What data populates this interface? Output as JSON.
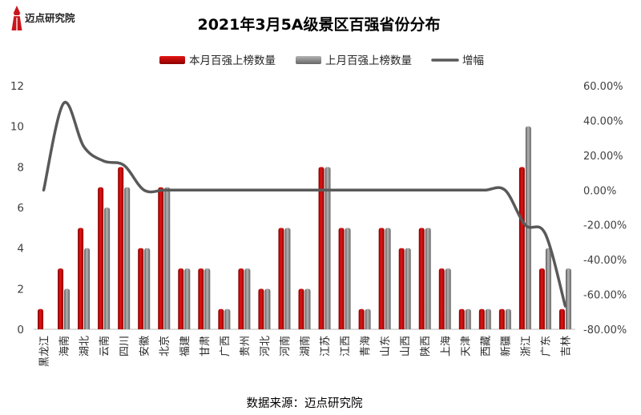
{
  "brand": {
    "name": "迈点研究院",
    "logo_color": "#c8161d",
    "icon": "lighthouse-icon"
  },
  "chart_data": {
    "type": "bar",
    "title": "2021年3月5A级景区百强省份分布",
    "categories": [
      "黑龙江",
      "海南",
      "湖北",
      "云南",
      "四川",
      "安徽",
      "北京",
      "福建",
      "甘肃",
      "广西",
      "贵州",
      "河北",
      "河南",
      "湖南",
      "江苏",
      "江西",
      "青海",
      "山东",
      "山西",
      "陕西",
      "上海",
      "天津",
      "西藏",
      "新疆",
      "浙江",
      "广东",
      "吉林"
    ],
    "series": [
      {
        "name": "本月百强上榜数量",
        "kind": "bar",
        "axis": "left",
        "color": "#c00000",
        "values": [
          1,
          3,
          5,
          7,
          8,
          4,
          7,
          3,
          3,
          1,
          3,
          2,
          5,
          2,
          8,
          5,
          1,
          5,
          4,
          5,
          3,
          1,
          1,
          1,
          8,
          3,
          1
        ]
      },
      {
        "name": "上月百强上榜数量",
        "kind": "bar",
        "axis": "left",
        "color": "#7f7f7f",
        "values": [
          0,
          2,
          4,
          6,
          7,
          4,
          7,
          3,
          3,
          1,
          3,
          2,
          5,
          2,
          8,
          5,
          1,
          5,
          4,
          5,
          3,
          1,
          1,
          1,
          10,
          4,
          3
        ]
      },
      {
        "name": "增幅",
        "kind": "line",
        "axis": "right",
        "color": "#595959",
        "smooth": true,
        "values": [
          0,
          0.5,
          0.25,
          0.1667,
          0.1429,
          0,
          0,
          0,
          0,
          0,
          0,
          0,
          0,
          0,
          0,
          0,
          0,
          0,
          0,
          0,
          0,
          0,
          0,
          0,
          -0.2,
          -0.25,
          -0.6667
        ]
      }
    ],
    "y_left": {
      "lim": [
        0,
        12
      ],
      "ticks": [
        0,
        2,
        4,
        6,
        8,
        10,
        12
      ],
      "tick_labels": [
        "0",
        "2",
        "4",
        "6",
        "8",
        "10",
        "12"
      ]
    },
    "y_right": {
      "lim": [
        -0.8,
        0.6
      ],
      "ticks": [
        0.6,
        0.4,
        0.2,
        0,
        -0.2,
        -0.4,
        -0.6,
        -0.8
      ],
      "tick_labels": [
        "60.00%",
        "40.00%",
        "20.00%",
        "0.00%",
        "-20.00%",
        "-40.00%",
        "-60.00%",
        "-80.00%"
      ]
    },
    "legend_position": "top",
    "grid": false
  },
  "source": "数据来源：迈点研究院"
}
